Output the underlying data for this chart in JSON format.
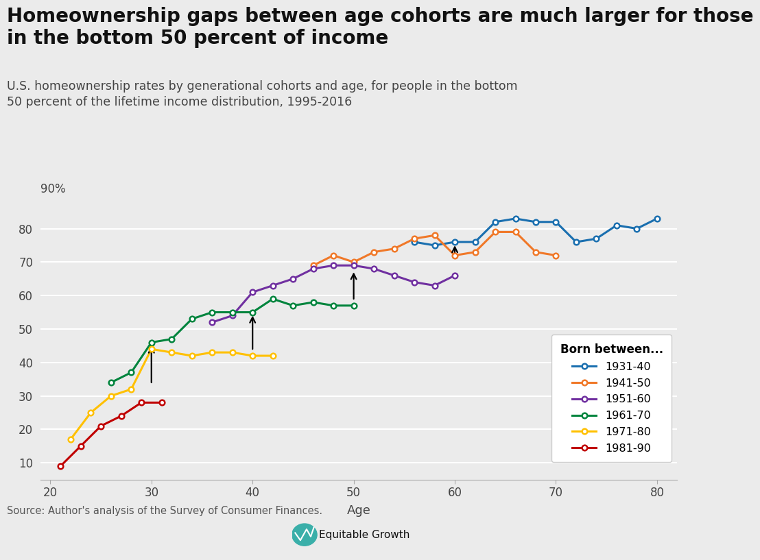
{
  "title_bold": "Homeownership gaps between age cohorts are much larger for those\nin the bottom 50 percent of income",
  "subtitle": "U.S. homeownership rates by generational cohorts and age, for people in the bottom\n50 percent of the lifetime income distribution, 1995-2016",
  "xlabel": "Age",
  "source": "Source: Author's analysis of the Survey of Consumer Finances.",
  "background_color": "#ebebeb",
  "plot_bg_color": "#e8e8e8",
  "series": {
    "1931-40": {
      "color": "#1a6faf",
      "ages": [
        56,
        58,
        60,
        62,
        64,
        66,
        68,
        70,
        72,
        74,
        76,
        78,
        80
      ],
      "values": [
        76,
        75,
        76,
        76,
        82,
        83,
        82,
        82,
        76,
        77,
        81,
        80,
        83
      ]
    },
    "1941-50": {
      "color": "#f07828",
      "ages": [
        46,
        48,
        50,
        52,
        54,
        56,
        58,
        60,
        62,
        64,
        66,
        68,
        70
      ],
      "values": [
        69,
        72,
        70,
        73,
        74,
        77,
        78,
        72,
        73,
        79,
        79,
        73,
        72
      ]
    },
    "1951-60": {
      "color": "#7030a0",
      "ages": [
        36,
        38,
        40,
        42,
        44,
        46,
        48,
        50,
        52,
        54,
        56,
        58,
        60
      ],
      "values": [
        52,
        54,
        61,
        63,
        65,
        68,
        69,
        69,
        68,
        66,
        64,
        63,
        66
      ]
    },
    "1961-70": {
      "color": "#00843d",
      "ages": [
        26,
        28,
        30,
        32,
        34,
        36,
        38,
        40,
        42,
        44,
        46,
        48,
        50
      ],
      "values": [
        34,
        37,
        46,
        47,
        53,
        55,
        55,
        55,
        59,
        57,
        58,
        57,
        57
      ]
    },
    "1971-80": {
      "color": "#ffc000",
      "ages": [
        22,
        24,
        26,
        28,
        30,
        32,
        34,
        36,
        38,
        40,
        42
      ],
      "values": [
        17,
        25,
        30,
        32,
        44,
        43,
        42,
        43,
        43,
        42,
        42
      ]
    },
    "1981-90": {
      "color": "#c00000",
      "ages": [
        21,
        23,
        25,
        27,
        29,
        31
      ],
      "values": [
        9,
        15,
        21,
        24,
        28,
        28
      ]
    }
  },
  "legend_order": [
    "1931-40",
    "1941-50",
    "1951-60",
    "1961-70",
    "1971-80",
    "1981-90"
  ],
  "arrows": [
    {
      "x": 30,
      "y_start": 34,
      "y_end": 45
    },
    {
      "x": 40,
      "y_start": 44,
      "y_end": 54
    },
    {
      "x": 50,
      "y_start": 59,
      "y_end": 67
    },
    {
      "x": 60,
      "y_start": 72,
      "y_end": 75
    }
  ],
  "ylim": [
    5,
    93
  ],
  "xlim": [
    19,
    82
  ],
  "yticks": [
    10,
    20,
    30,
    40,
    50,
    60,
    70,
    80
  ],
  "xticks": [
    20,
    30,
    40,
    50,
    60,
    70,
    80
  ],
  "top_ylabel": "90%"
}
